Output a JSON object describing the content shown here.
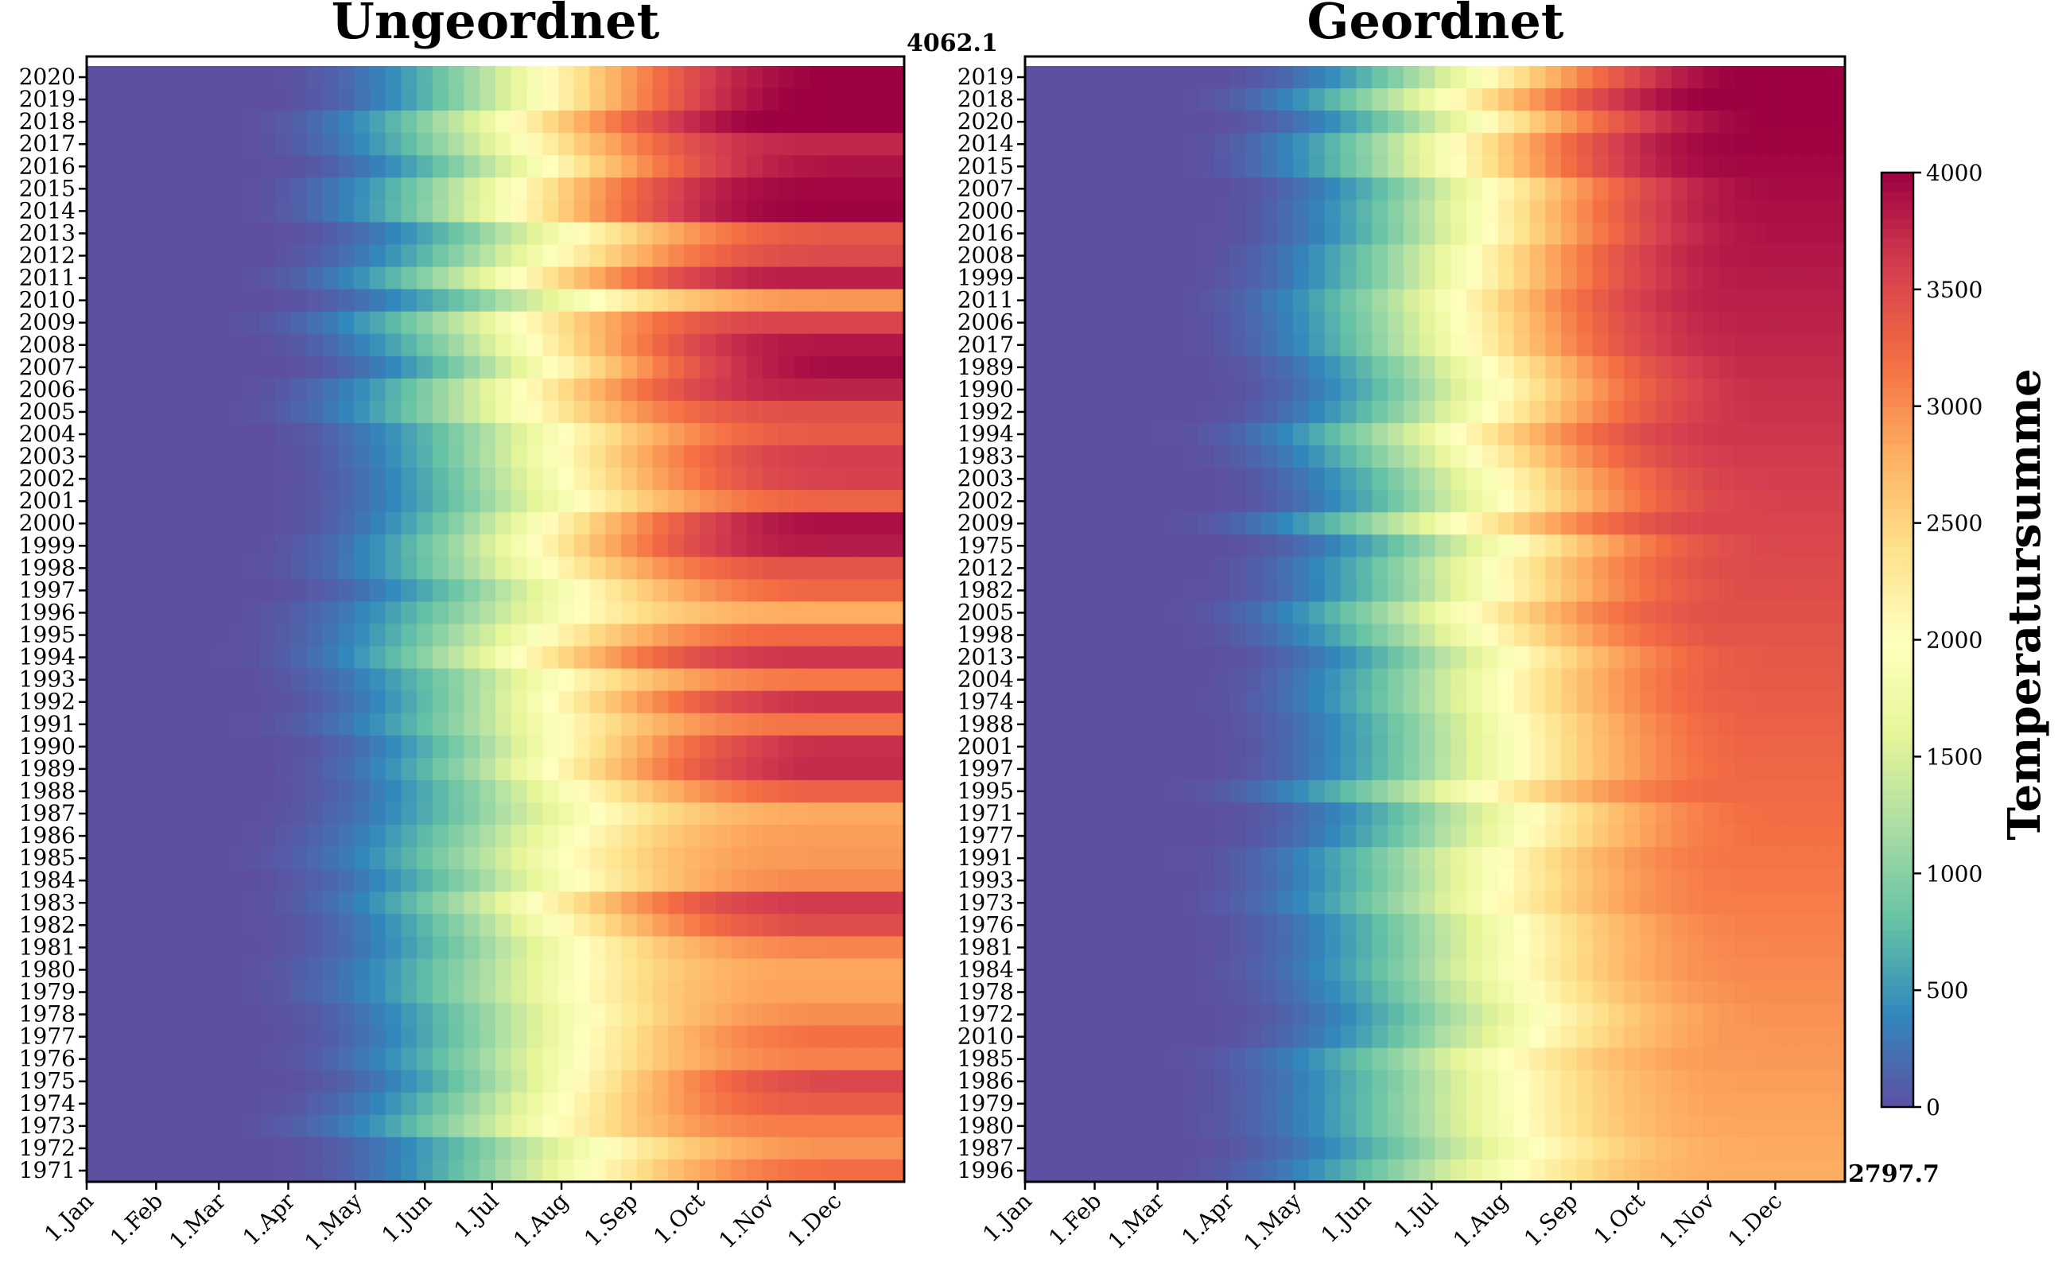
{
  "chart_data": [
    {
      "type": "heatmap",
      "title": "Ungeordnet",
      "ordering": "chronological",
      "rows": [
        2020,
        2019,
        2018,
        2017,
        2016,
        2015,
        2014,
        2013,
        2012,
        2011,
        2010,
        2009,
        2008,
        2007,
        2006,
        2005,
        2004,
        2003,
        2002,
        2001,
        2000,
        1999,
        1998,
        1997,
        1996,
        1995,
        1994,
        1993,
        1992,
        1991,
        1990,
        1989,
        1988,
        1987,
        1986,
        1985,
        1984,
        1983,
        1982,
        1981,
        1980,
        1979,
        1978,
        1977,
        1976,
        1975,
        1974,
        1973,
        1972,
        1971
      ],
      "xticks": [
        "1.Jan",
        "1.Feb",
        "1.Mar",
        "1.Apr",
        "1.May",
        "1.Jun",
        "1.Jul",
        "1.Aug",
        "1.Sep",
        "1.Oct",
        "1.Nov",
        "1.Dec"
      ],
      "annotation": "4062.1"
    },
    {
      "type": "heatmap",
      "title": "Geordnet",
      "ordering": "by annual total, descending",
      "rows": [
        2019,
        2018,
        2020,
        2014,
        2015,
        2007,
        2000,
        2016,
        2008,
        1999,
        2011,
        2006,
        2017,
        1989,
        1990,
        1992,
        1994,
        1983,
        2003,
        2002,
        2009,
        1975,
        2012,
        1982,
        2005,
        1998,
        2013,
        2004,
        1974,
        1988,
        2001,
        1997,
        1995,
        1971,
        1977,
        1991,
        1993,
        1973,
        1976,
        1981,
        1984,
        1978,
        1972,
        2010,
        1985,
        1986,
        1979,
        1980,
        1987,
        1996
      ],
      "xticks": [
        "1.Jan",
        "1.Feb",
        "1.Mar",
        "1.Apr",
        "1.May",
        "1.Jun",
        "1.Jul",
        "1.Aug",
        "1.Sep",
        "1.Oct",
        "1.Nov",
        "1.Dec"
      ],
      "annotation": "2797.7"
    }
  ],
  "value_range": [
    0,
    4062.1
  ],
  "max_total": 4062.1,
  "min_total": 2797.7,
  "colorbar": {
    "label": "Temperatursumme",
    "colormap": "Spectral_r",
    "vmin": 0,
    "vmax": 4000,
    "ticks": [
      "0",
      "500",
      "1000",
      "1500",
      "2000",
      "2500",
      "3000",
      "3500",
      "4000"
    ],
    "colors": [
      "#5e4fa2",
      "#3288bd",
      "#66c2a5",
      "#abdda4",
      "#e6f598",
      "#ffffbf",
      "#fee08b",
      "#fdae61",
      "#f46d43",
      "#d53e4f",
      "#9e0142"
    ]
  }
}
